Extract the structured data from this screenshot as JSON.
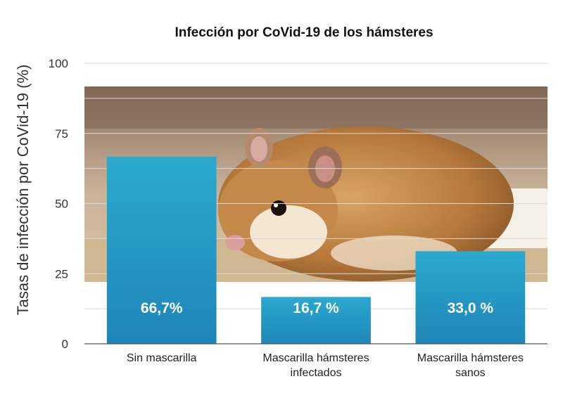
{
  "chart_data": {
    "type": "bar",
    "title": "Infección por CoVid-19 de los hámsteres",
    "ylabel": "Tasas de infección por CoVid-19 (%)",
    "xlabel": "",
    "ylim": [
      0,
      100
    ],
    "yticks": [
      0,
      25,
      50,
      75,
      100
    ],
    "categories": [
      [
        "Sin mascarilla"
      ],
      [
        "Mascarilla hámsteres",
        "infectados"
      ],
      [
        "Mascarilla hámsteres",
        "sanos"
      ]
    ],
    "values": [
      66.7,
      16.7,
      33.0
    ],
    "data_labels": [
      "66,7%",
      "16,7 %",
      "33,0 %"
    ],
    "bar_color": "#2aa9cf",
    "bar_color_dark": "#1f86b8",
    "grid": true
  },
  "background_image": {
    "description": "hamster photo",
    "icon": "hamster-photo"
  }
}
